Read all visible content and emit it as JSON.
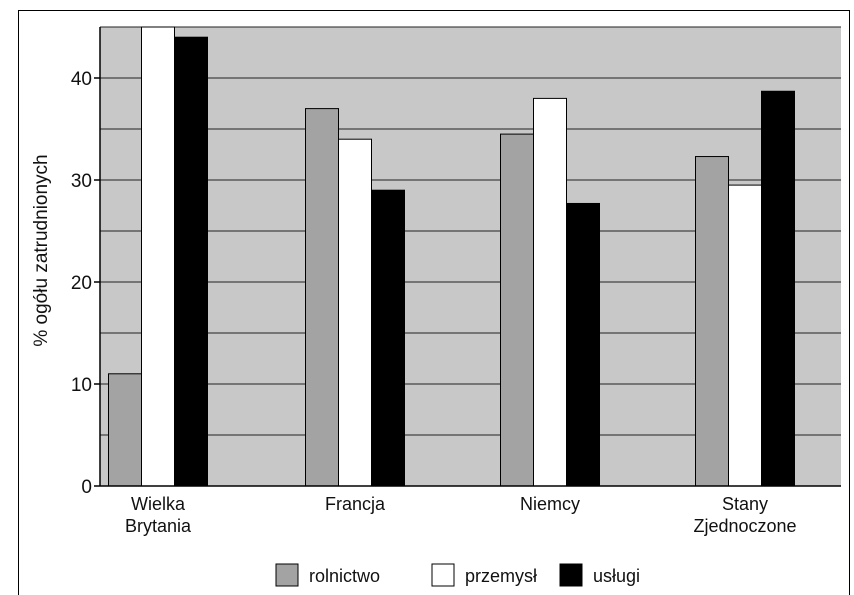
{
  "chart_data": {
    "type": "bar",
    "ylabel": "% ogółu zatrudnionych",
    "ylim": [
      0,
      45
    ],
    "yticks": [
      0,
      10,
      20,
      30,
      40
    ],
    "grid": true,
    "legend_position": "bottom",
    "categories": [
      [
        "Wielka",
        "Brytania"
      ],
      [
        "Francja"
      ],
      [
        "Niemcy"
      ],
      [
        "Stany",
        "Zjednoczone"
      ]
    ],
    "series": [
      {
        "name": "rolnictwo",
        "color": "#a3a3a3",
        "values": [
          11,
          37,
          34.5,
          32.3
        ]
      },
      {
        "name": "przemysł",
        "color": "#ffffff",
        "values": [
          45,
          34,
          38,
          29.5
        ]
      },
      {
        "name": "usługi",
        "color": "#000000",
        "values": [
          44,
          29,
          27.7,
          38.7
        ]
      }
    ],
    "plot_background": "#c8c8c8"
  }
}
